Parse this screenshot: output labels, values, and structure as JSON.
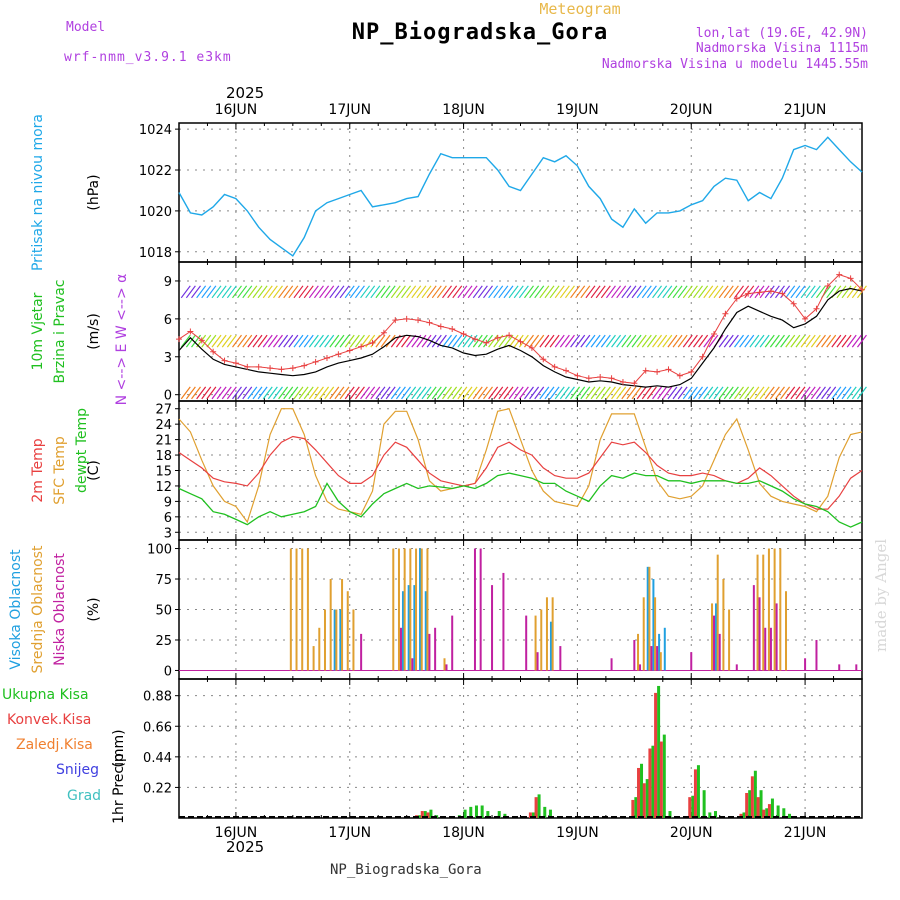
{
  "header": {
    "title": "NP_Biogradska_Gora",
    "subtitle": "Meteogram",
    "model_label": "Model",
    "model_name": "wrf-nmm_v3.9.1 e3km",
    "lonlat": "lon,lat (19.6E, 42.9N)",
    "elevation": "Nadmorska Visina 1115m",
    "model_elevation": "Nadmorska Visina u modelu 1445.55m",
    "year": "2025",
    "footer": "NP_Biogradska_Gora",
    "credit": "made by Angel"
  },
  "colors": {
    "pressure": "#1fa8e8",
    "wind_speed": "#000000",
    "gust": "#e84040",
    "t2m": "#e84040",
    "sfc": "#e0a030",
    "dew": "#20c020",
    "high_cloud": "#20a0e0",
    "mid_cloud": "#e0a030",
    "low_cloud": "#c020a0",
    "total_precip": "#20c020",
    "conv_precip": "#e84040",
    "frz_precip": "#f08030",
    "snow": "#4040e0",
    "hail": "#40c0c0"
  },
  "x_axis": {
    "day_labels": [
      "16JUN",
      "17JUN",
      "18JUN",
      "19JUN",
      "20JUN",
      "21JUN"
    ],
    "range_days": [
      15.5,
      21.5
    ]
  },
  "chart_data": [
    {
      "type": "line",
      "name": "pressure",
      "ylabel_title": "Pritisak na nivou mora",
      "ylabel_unit": "(hPa)",
      "ylim": [
        1017.5,
        1024.3
      ],
      "yticks": [
        1018,
        1020,
        1022,
        1024
      ],
      "x": [
        15.5,
        15.6,
        15.7,
        15.8,
        15.9,
        16.0,
        16.1,
        16.2,
        16.3,
        16.4,
        16.5,
        16.6,
        16.7,
        16.8,
        16.9,
        17.0,
        17.1,
        17.2,
        17.3,
        17.4,
        17.5,
        17.6,
        17.7,
        17.8,
        17.9,
        18.0,
        18.1,
        18.2,
        18.3,
        18.4,
        18.5,
        18.6,
        18.7,
        18.8,
        18.9,
        19.0,
        19.1,
        19.2,
        19.3,
        19.4,
        19.5,
        19.6,
        19.7,
        19.8,
        19.9,
        20.0,
        20.1,
        20.2,
        20.3,
        20.4,
        20.5,
        20.6,
        20.7,
        20.8,
        20.9,
        21.0,
        21.1,
        21.2,
        21.3,
        21.4,
        21.5
      ],
      "values": [
        1020.9,
        1019.9,
        1019.8,
        1020.2,
        1020.8,
        1020.6,
        1020.0,
        1019.2,
        1018.6,
        1018.2,
        1017.8,
        1018.7,
        1020.0,
        1020.4,
        1020.6,
        1020.8,
        1021.0,
        1020.2,
        1020.3,
        1020.4,
        1020.6,
        1020.7,
        1021.8,
        1022.8,
        1022.6,
        1022.6,
        1022.6,
        1022.6,
        1022.0,
        1021.2,
        1021.0,
        1021.8,
        1022.6,
        1022.4,
        1022.7,
        1022.2,
        1021.2,
        1020.6,
        1019.6,
        1019.2,
        1020.1,
        1019.4,
        1019.9,
        1019.9,
        1020.0,
        1020.3,
        1020.5,
        1021.2,
        1021.6,
        1021.5,
        1020.5,
        1020.9,
        1020.6,
        1021.6,
        1023.0,
        1023.2,
        1023.0,
        1023.6,
        1023.0,
        1022.4,
        1021.9
      ]
    },
    {
      "type": "line",
      "name": "wind",
      "ylabel_title": "10m Vjetar Brzina i Pravac",
      "ylabel_unit": "(m/s)",
      "compass": "N <--> E W <--> α",
      "ylim": [
        -0.5,
        10.5
      ],
      "yticks": [
        0,
        3,
        6,
        9
      ],
      "x": [
        15.5,
        15.6,
        15.7,
        15.8,
        15.9,
        16.0,
        16.1,
        16.2,
        16.3,
        16.4,
        16.5,
        16.6,
        16.7,
        16.8,
        16.9,
        17.0,
        17.1,
        17.2,
        17.3,
        17.4,
        17.5,
        17.6,
        17.7,
        17.8,
        17.9,
        18.0,
        18.1,
        18.2,
        18.3,
        18.4,
        18.5,
        18.6,
        18.7,
        18.8,
        18.9,
        19.0,
        19.1,
        19.2,
        19.3,
        19.4,
        19.5,
        19.6,
        19.7,
        19.8,
        19.9,
        20.0,
        20.1,
        20.2,
        20.3,
        20.4,
        20.5,
        20.6,
        20.7,
        20.8,
        20.9,
        21.0,
        21.1,
        21.2,
        21.3,
        21.4,
        21.5
      ],
      "series": [
        {
          "name": "speed",
          "values": [
            3.5,
            4.5,
            3.6,
            2.8,
            2.4,
            2.2,
            2.0,
            1.8,
            1.7,
            1.6,
            1.5,
            1.6,
            1.8,
            2.2,
            2.5,
            2.7,
            2.9,
            3.2,
            3.8,
            4.5,
            4.7,
            4.6,
            4.3,
            3.9,
            3.7,
            3.3,
            3.1,
            3.2,
            3.6,
            3.9,
            3.5,
            3.0,
            2.3,
            1.8,
            1.4,
            1.2,
            1.0,
            1.1,
            1.0,
            0.8,
            0.7,
            0.6,
            0.7,
            0.6,
            0.8,
            1.3,
            2.5,
            3.7,
            5.2,
            6.5,
            7.0,
            6.6,
            6.2,
            5.9,
            5.3,
            5.6,
            6.2,
            7.5,
            8.2,
            8.4,
            8.2
          ]
        },
        {
          "name": "gust",
          "values": [
            4.4,
            5.0,
            4.3,
            3.4,
            2.7,
            2.5,
            2.2,
            2.2,
            2.1,
            2.0,
            2.1,
            2.3,
            2.6,
            2.9,
            3.2,
            3.5,
            3.8,
            4.1,
            4.9,
            5.9,
            6.0,
            5.9,
            5.7,
            5.4,
            5.2,
            4.8,
            4.4,
            4.1,
            4.5,
            4.7,
            4.2,
            3.7,
            2.8,
            2.2,
            1.9,
            1.5,
            1.3,
            1.4,
            1.3,
            1.0,
            0.9,
            1.9,
            1.8,
            2.0,
            1.5,
            1.8,
            3.0,
            4.8,
            6.4,
            7.6,
            8.0,
            8.1,
            8.2,
            8.0,
            7.2,
            6.0,
            6.8,
            8.6,
            9.5,
            9.2,
            8.3
          ]
        }
      ]
    },
    {
      "type": "line",
      "name": "temperature",
      "ylabel_title": "2m Temp / SFC Temp / dewpt Temp",
      "ylabel_unit": "(C)",
      "ylim": [
        1.5,
        28.5
      ],
      "yticks": [
        3,
        6,
        9,
        12,
        15,
        18,
        21,
        24,
        27
      ],
      "x": [
        15.5,
        15.6,
        15.7,
        15.8,
        15.9,
        16.0,
        16.1,
        16.2,
        16.3,
        16.4,
        16.5,
        16.6,
        16.7,
        16.8,
        16.9,
        17.0,
        17.1,
        17.2,
        17.3,
        17.4,
        17.5,
        17.6,
        17.7,
        17.8,
        17.9,
        18.0,
        18.1,
        18.2,
        18.3,
        18.4,
        18.5,
        18.6,
        18.7,
        18.8,
        18.9,
        19.0,
        19.1,
        19.2,
        19.3,
        19.4,
        19.5,
        19.6,
        19.7,
        19.8,
        19.9,
        20.0,
        20.1,
        20.2,
        20.3,
        20.4,
        20.5,
        20.6,
        20.7,
        20.8,
        20.9,
        21.0,
        21.1,
        21.2,
        21.3,
        21.4,
        21.5
      ],
      "series": [
        {
          "name": "2m Temp",
          "values": [
            18.5,
            17.0,
            15.5,
            13.5,
            12.8,
            12.5,
            12.0,
            14.5,
            18.0,
            20.5,
            21.6,
            21.2,
            19.0,
            16.5,
            14.0,
            12.5,
            12.5,
            14.0,
            18.0,
            20.5,
            19.5,
            17.0,
            14.5,
            13.0,
            12.5,
            12.0,
            12.5,
            15.5,
            19.5,
            20.5,
            19.0,
            18.0,
            15.5,
            14.0,
            13.5,
            13.5,
            14.5,
            17.5,
            20.5,
            20.0,
            20.5,
            18.5,
            16.0,
            14.5,
            14.0,
            14.0,
            14.5,
            14.0,
            13.0,
            12.5,
            13.5,
            15.5,
            14.0,
            12.0,
            10.0,
            8.5,
            7.5,
            7.5,
            10.0,
            13.5,
            15.0
          ]
        },
        {
          "name": "SFC Temp",
          "values": [
            25.0,
            22.5,
            17.0,
            12.0,
            9.0,
            8.0,
            5.0,
            12.0,
            22.0,
            27.0,
            27.0,
            22.0,
            14.0,
            9.0,
            7.5,
            7.0,
            6.5,
            11.0,
            24.0,
            26.5,
            26.5,
            21.0,
            13.0,
            11.0,
            11.5,
            12.0,
            12.5,
            19.0,
            26.5,
            27.0,
            21.0,
            15.0,
            11.0,
            9.0,
            8.5,
            8.0,
            12.0,
            21.0,
            26.0,
            26.0,
            26.0,
            19.5,
            13.0,
            10.0,
            9.5,
            10.0,
            12.0,
            17.0,
            22.0,
            25.0,
            19.0,
            12.5,
            10.0,
            9.0,
            8.5,
            8.0,
            7.0,
            10.0,
            17.5,
            22.0,
            22.5
          ]
        },
        {
          "name": "dewpt Temp",
          "values": [
            11.5,
            10.5,
            9.5,
            7.0,
            6.5,
            5.5,
            4.5,
            6.0,
            7.0,
            6.0,
            6.5,
            7.0,
            8.0,
            12.5,
            9.0,
            7.0,
            6.0,
            8.5,
            10.5,
            11.5,
            12.5,
            11.5,
            12.0,
            11.8,
            11.5,
            12.0,
            11.5,
            12.5,
            14.0,
            14.5,
            14.0,
            13.5,
            12.5,
            12.5,
            11.0,
            10.0,
            9.0,
            12.0,
            14.0,
            13.5,
            14.5,
            14.0,
            14.0,
            13.0,
            13.0,
            12.5,
            13.0,
            13.0,
            13.0,
            12.5,
            12.5,
            13.0,
            12.0,
            11.0,
            9.5,
            8.5,
            8.0,
            7.0,
            5.0,
            4.0,
            5.0
          ]
        }
      ]
    },
    {
      "type": "bar",
      "name": "clouds",
      "ylabel_title": "Visoka Oblacnost / Srednja Oblacnost / Niska Oblacnost",
      "ylabel_unit": "(%)",
      "ylim": [
        -7,
        107
      ],
      "yticks": [
        0,
        25,
        50,
        75,
        100
      ],
      "series": [
        {
          "name": "Visoka Oblacnost",
          "x": [
            16.85,
            16.9,
            17.45,
            17.5,
            17.55,
            17.6,
            17.65,
            18.75,
            19.6,
            19.65,
            19.7,
            19.75,
            20.2
          ],
          "values": [
            50,
            50,
            65,
            70,
            70,
            100,
            65,
            40,
            85,
            75,
            30,
            35,
            55
          ]
        },
        {
          "name": "Srednja Oblacnost",
          "x": [
            16.5,
            16.55,
            16.6,
            16.65,
            16.7,
            16.75,
            16.8,
            16.85,
            16.9,
            16.95,
            17.0,
            17.05,
            17.4,
            17.45,
            17.5,
            17.55,
            17.6,
            17.65,
            17.7,
            17.85,
            18.65,
            18.7,
            18.75,
            18.8,
            19.55,
            19.6,
            19.65,
            19.7,
            19.75,
            20.2,
            20.25,
            20.3,
            20.35,
            20.6,
            20.65,
            20.7,
            20.75,
            20.8,
            20.85
          ],
          "values": [
            100,
            100,
            100,
            100,
            20,
            35,
            50,
            75,
            50,
            75,
            65,
            50,
            100,
            100,
            100,
            100,
            100,
            100,
            100,
            10,
            45,
            50,
            60,
            60,
            30,
            60,
            85,
            60,
            15,
            55,
            95,
            75,
            50,
            95,
            95,
            100,
            100,
            100,
            65
          ]
        },
        {
          "name": "Niska Oblacnost",
          "x": [
            17.1,
            17.45,
            17.55,
            17.7,
            17.75,
            17.85,
            17.9,
            18.1,
            18.15,
            18.25,
            18.35,
            18.55,
            18.65,
            18.85,
            19.3,
            19.5,
            19.55,
            19.65,
            19.7,
            20.0,
            20.2,
            20.25,
            20.4,
            20.55,
            20.6,
            20.65,
            20.7,
            20.75,
            21.0,
            21.1,
            21.3,
            21.45
          ],
          "values": [
            30,
            35,
            10,
            30,
            35,
            5,
            45,
            100,
            100,
            70,
            80,
            45,
            15,
            20,
            10,
            25,
            5,
            20,
            20,
            15,
            45,
            30,
            5,
            70,
            60,
            35,
            35,
            55,
            10,
            25,
            5,
            5
          ]
        }
      ]
    },
    {
      "type": "bar",
      "name": "precip",
      "ylabel_title": "1hr Precip",
      "ylabel_unit": "(mm)",
      "ylim": [
        0,
        1.0
      ],
      "yticks": [
        0.22,
        0.44,
        0.66,
        0.88
      ],
      "legend": [
        "Ukupna Kisa",
        "Konvek.Kisa",
        "Zaledj.Kisa",
        "Snijeg",
        "Grad"
      ],
      "series": [
        {
          "name": "Ukupna Kisa",
          "x": [
            17.6,
            17.65,
            17.7,
            17.75,
            17.95,
            18.0,
            18.05,
            18.1,
            18.15,
            18.2,
            18.3,
            18.35,
            18.6,
            18.65,
            18.7,
            18.75,
            19.5,
            19.55,
            19.6,
            19.65,
            19.7,
            19.75,
            19.8,
            20.0,
            20.05,
            20.1,
            20.15,
            20.2,
            20.45,
            20.5,
            20.55,
            20.6,
            20.65,
            20.7,
            20.75,
            20.8,
            20.85
          ],
          "values": [
            0.02,
            0.05,
            0.06,
            0.02,
            0.02,
            0.06,
            0.08,
            0.09,
            0.09,
            0.05,
            0.05,
            0.03,
            0.04,
            0.17,
            0.08,
            0.06,
            0.15,
            0.39,
            0.28,
            0.52,
            0.95,
            0.6,
            0.05,
            0.16,
            0.38,
            0.2,
            0.04,
            0.05,
            0.04,
            0.2,
            0.34,
            0.2,
            0.07,
            0.14,
            0.09,
            0.07,
            0.03
          ]
        },
        {
          "name": "Konvek.Kisa",
          "x": [
            17.6,
            17.65,
            17.7,
            18.6,
            18.65,
            19.5,
            19.55,
            19.6,
            19.65,
            19.7,
            19.75,
            20.0,
            20.05,
            20.45,
            20.5,
            20.55,
            20.6,
            20.65,
            20.7
          ],
          "values": [
            0.02,
            0.05,
            0.04,
            0.04,
            0.15,
            0.13,
            0.36,
            0.25,
            0.5,
            0.9,
            0.55,
            0.15,
            0.35,
            0.03,
            0.18,
            0.3,
            0.15,
            0.06,
            0.1
          ]
        }
      ]
    }
  ]
}
